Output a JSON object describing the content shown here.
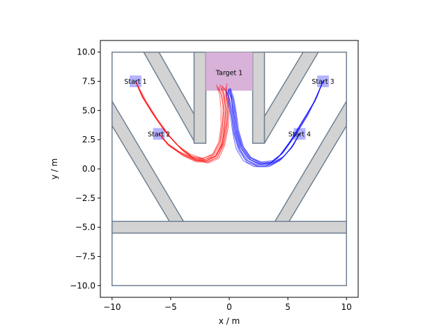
{
  "chart_data": {
    "type": "line",
    "title": "",
    "xlabel": "x / m",
    "ylabel": "y / m",
    "xlim": [
      -11,
      11
    ],
    "ylim": [
      -11,
      11
    ],
    "xticks": [
      -10,
      -5,
      0,
      5,
      10
    ],
    "yticks": [
      -10.0,
      -7.5,
      -5.0,
      -2.5,
      0.0,
      2.5,
      5.0,
      7.5,
      10.0
    ],
    "xtick_labels": [
      "−10",
      "−5",
      "0",
      "5",
      "10"
    ],
    "ytick_labels": [
      "−10.0",
      "−7.5",
      "−5.0",
      "−2.5",
      "0.0",
      "2.5",
      "5.0",
      "7.5",
      "10.0"
    ],
    "grid": false,
    "colors": {
      "obstacle_fill": "#d3d3d3",
      "obstacle_edge": "#708090",
      "target_fill": "#d8b2d8",
      "start_fill": "#9999ff",
      "series_red": "#ff0000",
      "series_blue": "#0000ff"
    },
    "arena": [
      [
        -10,
        -10
      ],
      [
        10,
        -10
      ],
      [
        10,
        10
      ],
      [
        -10,
        10
      ]
    ],
    "obstacles": [
      [
        [
          -7.3,
          10
        ],
        [
          -6,
          10
        ],
        [
          -2.9,
          4.5
        ],
        [
          -2.9,
          2.2
        ],
        [
          -7.3,
          10
        ]
      ],
      [
        [
          -3,
          10
        ],
        [
          -2,
          10
        ],
        [
          -2,
          2.2
        ],
        [
          -3,
          2.2
        ]
      ],
      [
        [
          2,
          10
        ],
        [
          3,
          10
        ],
        [
          3,
          2.2
        ],
        [
          2,
          2.2
        ]
      ],
      [
        [
          3,
          4.5
        ],
        [
          6.3,
          10
        ],
        [
          7.6,
          10
        ],
        [
          3,
          2.2
        ]
      ],
      [
        [
          -10,
          5.8
        ],
        [
          -3.9,
          -4.5
        ],
        [
          -5.1,
          -4.5
        ],
        [
          -10,
          3.7
        ]
      ],
      [
        [
          10,
          5.8
        ],
        [
          10,
          3.7
        ],
        [
          5.1,
          -4.5
        ],
        [
          3.9,
          -4.5
        ]
      ],
      [
        [
          -10,
          -4.5
        ],
        [
          10,
          -4.5
        ],
        [
          10,
          -5.5
        ],
        [
          -10,
          -5.5
        ]
      ]
    ],
    "targets": [
      {
        "label": "Target 1",
        "x0": -2,
        "x1": 2,
        "y0": 6.7,
        "y1": 10
      }
    ],
    "starts": [
      {
        "label": "Start 1",
        "x": -8,
        "y": 7.5
      },
      {
        "label": "Start 2",
        "x": -6,
        "y": 3
      },
      {
        "label": "Start 3",
        "x": 8,
        "y": 7.5
      },
      {
        "label": "Start 4",
        "x": 6,
        "y": 3
      }
    ],
    "series": [
      {
        "color": "red",
        "trajectories": [
          [
            [
              -8,
              7.5
            ],
            [
              -7.4,
              6.1
            ],
            [
              -6.4,
              4.6
            ],
            [
              -5.3,
              3.0
            ],
            [
              -4.3,
              1.9
            ],
            [
              -3.2,
              1.1
            ],
            [
              -2.1,
              0.8
            ],
            [
              -1.2,
              1.1
            ],
            [
              -0.6,
              2.0
            ],
            [
              -0.4,
              3.6
            ],
            [
              -0.3,
              5.2
            ],
            [
              -0.5,
              6.5
            ],
            [
              -0.8,
              7.2
            ]
          ],
          [
            [
              -8,
              7.5
            ],
            [
              -7.2,
              5.9
            ],
            [
              -6.2,
              4.3
            ],
            [
              -5.1,
              2.8
            ],
            [
              -4.0,
              1.6
            ],
            [
              -2.9,
              0.8
            ],
            [
              -1.9,
              0.6
            ],
            [
              -1.0,
              1.0
            ],
            [
              -0.5,
              2.2
            ],
            [
              -0.2,
              3.9
            ],
            [
              -0.1,
              5.4
            ],
            [
              -0.3,
              6.6
            ],
            [
              -0.6,
              7.1
            ]
          ],
          [
            [
              -8,
              7.5
            ],
            [
              -7.5,
              6.3
            ],
            [
              -6.6,
              4.8
            ],
            [
              -5.5,
              3.2
            ],
            [
              -4.5,
              2.1
            ],
            [
              -3.4,
              1.3
            ],
            [
              -2.3,
              0.9
            ],
            [
              -1.4,
              1.2
            ],
            [
              -0.8,
              2.3
            ],
            [
              -0.6,
              3.8
            ],
            [
              -0.5,
              5.3
            ],
            [
              -0.7,
              6.4
            ],
            [
              -1.0,
              7.0
            ]
          ],
          [
            [
              -8,
              7.5
            ],
            [
              -7.3,
              6.0
            ],
            [
              -6.3,
              4.4
            ],
            [
              -5.2,
              2.9
            ],
            [
              -4.1,
              1.7
            ],
            [
              -3.0,
              0.9
            ],
            [
              -2.0,
              0.7
            ],
            [
              -1.1,
              1.1
            ],
            [
              -0.6,
              2.1
            ],
            [
              -0.3,
              3.7
            ],
            [
              -0.2,
              5.1
            ],
            [
              -0.3,
              6.3
            ],
            [
              -0.2,
              7.3
            ]
          ],
          [
            [
              -8,
              7.5
            ],
            [
              -7.1,
              5.8
            ],
            [
              -6.1,
              4.2
            ],
            [
              -5.0,
              2.7
            ],
            [
              -3.9,
              1.5
            ],
            [
              -2.8,
              0.7
            ],
            [
              -1.8,
              0.5
            ],
            [
              -0.9,
              0.9
            ],
            [
              -0.4,
              2.0
            ],
            [
              -0.1,
              3.5
            ],
            [
              0.0,
              5.0
            ],
            [
              -0.1,
              6.2
            ],
            [
              -0.4,
              6.9
            ]
          ],
          [
            [
              -6,
              3
            ],
            [
              -5.2,
              2.1
            ],
            [
              -4.2,
              1.4
            ],
            [
              -3.1,
              0.9
            ],
            [
              -2.1,
              0.8
            ],
            [
              -1.3,
              1.2
            ],
            [
              -0.8,
              2.1
            ],
            [
              -0.6,
              3.4
            ],
            [
              -0.5,
              4.8
            ],
            [
              -0.6,
              6.1
            ],
            [
              -0.9,
              7.0
            ]
          ],
          [
            [
              -6,
              3
            ],
            [
              -5.1,
              2.0
            ],
            [
              -4.0,
              1.2
            ],
            [
              -2.9,
              0.7
            ],
            [
              -1.9,
              0.7
            ],
            [
              -1.1,
              1.1
            ],
            [
              -0.6,
              2.2
            ],
            [
              -0.4,
              3.6
            ],
            [
              -0.3,
              5.0
            ],
            [
              -0.4,
              6.3
            ],
            [
              -0.6,
              7.1
            ]
          ],
          [
            [
              -6,
              3
            ],
            [
              -5.3,
              2.2
            ],
            [
              -4.3,
              1.5
            ],
            [
              -3.2,
              1.0
            ],
            [
              -2.2,
              0.9
            ],
            [
              -1.4,
              1.3
            ],
            [
              -0.9,
              2.3
            ],
            [
              -0.7,
              3.7
            ],
            [
              -0.7,
              5.1
            ],
            [
              -0.8,
              6.3
            ],
            [
              -1.1,
              7.2
            ]
          ],
          [
            [
              -6,
              3
            ],
            [
              -5.0,
              1.9
            ],
            [
              -3.9,
              1.1
            ],
            [
              -2.8,
              0.6
            ],
            [
              -1.8,
              0.6
            ],
            [
              -1.0,
              1.0
            ],
            [
              -0.5,
              2.0
            ],
            [
              -0.2,
              3.4
            ],
            [
              -0.1,
              4.9
            ],
            [
              -0.2,
              6.1
            ],
            [
              -0.3,
              7.0
            ]
          ],
          [
            [
              -6,
              3
            ],
            [
              -5.2,
              2.0
            ],
            [
              -4.1,
              1.3
            ],
            [
              -3.0,
              0.8
            ],
            [
              -2.0,
              0.7
            ],
            [
              -1.2,
              1.1
            ],
            [
              -0.7,
              2.1
            ],
            [
              -0.5,
              3.5
            ],
            [
              -0.4,
              5.0
            ],
            [
              -0.5,
              6.2
            ],
            [
              -0.7,
              6.9
            ]
          ]
        ]
      },
      {
        "color": "blue",
        "trajectories": [
          [
            [
              8,
              7.5
            ],
            [
              7.4,
              6.0
            ],
            [
              6.5,
              4.4
            ],
            [
              5.4,
              2.6
            ],
            [
              4.4,
              1.2
            ],
            [
              3.5,
              0.5
            ],
            [
              2.5,
              0.4
            ],
            [
              1.6,
              0.9
            ],
            [
              0.9,
              1.9
            ],
            [
              0.5,
              3.3
            ],
            [
              0.3,
              4.9
            ],
            [
              0.2,
              6.0
            ],
            [
              -0.1,
              6.8
            ]
          ],
          [
            [
              8,
              7.5
            ],
            [
              7.3,
              5.8
            ],
            [
              6.3,
              4.2
            ],
            [
              5.2,
              2.4
            ],
            [
              4.2,
              1.0
            ],
            [
              3.3,
              0.3
            ],
            [
              2.3,
              0.3
            ],
            [
              1.4,
              0.8
            ],
            [
              0.8,
              1.8
            ],
            [
              0.4,
              3.2
            ],
            [
              0.2,
              4.7
            ],
            [
              0.0,
              5.9
            ],
            [
              -0.2,
              6.7
            ]
          ],
          [
            [
              8,
              7.5
            ],
            [
              7.5,
              6.2
            ],
            [
              6.7,
              4.6
            ],
            [
              5.6,
              2.8
            ],
            [
              4.6,
              1.4
            ],
            [
              3.7,
              0.7
            ],
            [
              2.7,
              0.6
            ],
            [
              1.8,
              1.0
            ],
            [
              1.1,
              2.0
            ],
            [
              0.7,
              3.4
            ],
            [
              0.5,
              5.0
            ],
            [
              0.3,
              6.1
            ],
            [
              0.0,
              6.9
            ]
          ],
          [
            [
              8,
              7.5
            ],
            [
              7.2,
              5.7
            ],
            [
              6.2,
              4.0
            ],
            [
              5.1,
              2.2
            ],
            [
              4.1,
              0.9
            ],
            [
              3.1,
              0.2
            ],
            [
              2.1,
              0.2
            ],
            [
              1.2,
              0.7
            ],
            [
              0.6,
              1.7
            ],
            [
              0.3,
              3.1
            ],
            [
              0.1,
              4.6
            ],
            [
              -0.1,
              5.8
            ],
            [
              -0.3,
              6.6
            ]
          ],
          [
            [
              8,
              7.5
            ],
            [
              7.4,
              6.1
            ],
            [
              6.6,
              4.5
            ],
            [
              5.5,
              2.7
            ],
            [
              4.5,
              1.3
            ],
            [
              3.6,
              0.6
            ],
            [
              2.6,
              0.5
            ],
            [
              1.7,
              1.0
            ],
            [
              1.0,
              2.0
            ],
            [
              0.6,
              3.3
            ],
            [
              0.4,
              4.8
            ],
            [
              0.2,
              5.9
            ],
            [
              0.1,
              6.8
            ]
          ],
          [
            [
              6,
              3
            ],
            [
              5.4,
              2.0
            ],
            [
              4.6,
              1.0
            ],
            [
              3.7,
              0.5
            ],
            [
              2.7,
              0.4
            ],
            [
              1.8,
              0.8
            ],
            [
              1.1,
              1.8
            ],
            [
              0.7,
              3.2
            ],
            [
              0.5,
              4.7
            ],
            [
              0.3,
              5.9
            ],
            [
              0.0,
              6.8
            ]
          ],
          [
            [
              6,
              3
            ],
            [
              5.3,
              1.8
            ],
            [
              4.4,
              0.8
            ],
            [
              3.5,
              0.3
            ],
            [
              2.5,
              0.3
            ],
            [
              1.6,
              0.7
            ],
            [
              0.9,
              1.7
            ],
            [
              0.5,
              3.1
            ],
            [
              0.3,
              4.6
            ],
            [
              0.1,
              5.8
            ],
            [
              -0.2,
              6.6
            ]
          ],
          [
            [
              6,
              3
            ],
            [
              5.5,
              2.1
            ],
            [
              4.7,
              1.1
            ],
            [
              3.8,
              0.6
            ],
            [
              2.8,
              0.5
            ],
            [
              1.9,
              0.9
            ],
            [
              1.2,
              1.9
            ],
            [
              0.8,
              3.3
            ],
            [
              0.6,
              4.8
            ],
            [
              0.4,
              6.0
            ],
            [
              0.1,
              6.9
            ]
          ],
          [
            [
              6,
              3
            ],
            [
              5.2,
              1.7
            ],
            [
              4.3,
              0.7
            ],
            [
              3.4,
              0.2
            ],
            [
              2.4,
              0.2
            ],
            [
              1.5,
              0.6
            ],
            [
              0.8,
              1.6
            ],
            [
              0.4,
              3.0
            ],
            [
              0.2,
              4.5
            ],
            [
              0.0,
              5.7
            ],
            [
              -0.1,
              6.7
            ]
          ],
          [
            [
              6,
              3
            ],
            [
              5.4,
              1.9
            ],
            [
              4.5,
              0.9
            ],
            [
              3.6,
              0.4
            ],
            [
              2.6,
              0.4
            ],
            [
              1.7,
              0.8
            ],
            [
              1.0,
              1.8
            ],
            [
              0.6,
              3.2
            ],
            [
              0.4,
              4.7
            ],
            [
              0.2,
              5.9
            ],
            [
              -0.1,
              6.8
            ]
          ]
        ]
      }
    ]
  }
}
